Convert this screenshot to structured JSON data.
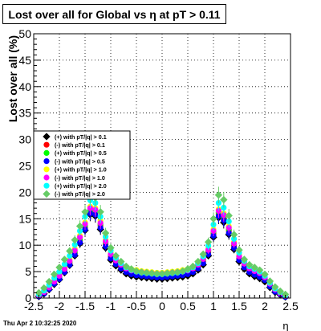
{
  "title": "Lost over all for Global vs   η at pT > 0.11",
  "footer": "Thu Apr  2 10:32:25 2020",
  "chart_data": {
    "type": "scatter",
    "xlabel": "η",
    "ylabel": "Lost over all (%)",
    "xlim": [
      -2.5,
      2.5
    ],
    "ylim": [
      0,
      50
    ],
    "x_ticks": [
      "-2.5",
      "-2",
      "-1.5",
      "-1",
      "-0.5",
      "0",
      "0.5",
      "1",
      "1.5",
      "2",
      "2.5"
    ],
    "y_ticks": [
      "0",
      "5",
      "10",
      "15",
      "20",
      "25",
      "30",
      "35",
      "40",
      "45",
      "50"
    ],
    "grid": true,
    "legend_position": "middle-left",
    "eta": [
      -2.4,
      -2.3,
      -2.2,
      -2.1,
      -2.0,
      -1.9,
      -1.8,
      -1.7,
      -1.6,
      -1.5,
      -1.4,
      -1.3,
      -1.2,
      -1.1,
      -1.0,
      -0.9,
      -0.8,
      -0.7,
      -0.6,
      -0.5,
      -0.4,
      -0.3,
      -0.2,
      -0.1,
      0.0,
      0.1,
      0.2,
      0.3,
      0.4,
      0.5,
      0.6,
      0.7,
      0.8,
      0.9,
      1.0,
      1.1,
      1.2,
      1.3,
      1.4,
      1.5,
      1.6,
      1.7,
      1.8,
      1.9,
      2.0,
      2.1,
      2.2,
      2.3,
      2.4
    ],
    "series": [
      {
        "name": "(+) with pT/|q| > 0.1",
        "color": "#000000",
        "shape": "diamond",
        "values": [
          0.3,
          0.8,
          1.6,
          2.6,
          3.5,
          4.8,
          6.2,
          8.0,
          10.3,
          12.8,
          15.8,
          15.5,
          13.0,
          9.5,
          7.2,
          6.1,
          5.3,
          4.6,
          4.2,
          4.0,
          3.9,
          3.8,
          3.7,
          3.6,
          3.6,
          3.7,
          3.8,
          3.9,
          4.0,
          4.2,
          4.6,
          5.3,
          6.3,
          8.0,
          11.5,
          15.2,
          14.3,
          12.0,
          9.2,
          6.9,
          5.5,
          4.6,
          4.1,
          3.7,
          3.1,
          2.0,
          1.1,
          0.6,
          0.2
        ]
      },
      {
        "name": "(-) with pT/|q| > 0.1",
        "color": "#ff0000",
        "shape": "circle",
        "values": [
          0.4,
          0.9,
          1.7,
          2.8,
          3.8,
          5.1,
          6.6,
          8.5,
          10.9,
          13.4,
          16.4,
          16.2,
          13.7,
          10.2,
          7.9,
          6.8,
          6.0,
          5.3,
          4.9,
          4.7,
          4.6,
          4.5,
          4.4,
          4.3,
          4.3,
          4.4,
          4.5,
          4.6,
          4.7,
          4.9,
          5.3,
          6.0,
          7.0,
          8.7,
          12.2,
          15.9,
          15.1,
          12.7,
          9.9,
          7.5,
          6.1,
          5.2,
          4.7,
          4.3,
          3.6,
          2.4,
          1.4,
          0.8,
          0.3
        ]
      },
      {
        "name": "(+) with pT/|q| > 0.5",
        "color": "#00ff00",
        "shape": "circle",
        "values": [
          0.5,
          1.0,
          1.9,
          3.0,
          4.0,
          5.3,
          6.8,
          8.7,
          11.1,
          13.7,
          16.7,
          16.5,
          14.0,
          10.5,
          8.2,
          7.1,
          6.3,
          5.6,
          5.2,
          5.0,
          4.9,
          4.8,
          4.7,
          4.6,
          4.6,
          4.7,
          4.8,
          4.9,
          5.0,
          5.2,
          5.6,
          6.3,
          7.3,
          9.0,
          12.5,
          16.2,
          15.4,
          13.0,
          10.2,
          7.8,
          6.4,
          5.5,
          5.0,
          4.6,
          3.9,
          2.6,
          1.5,
          0.9,
          0.4
        ]
      },
      {
        "name": "(-) with pT/|q| > 0.5",
        "color": "#0000ff",
        "shape": "circle",
        "values": [
          0.3,
          0.8,
          1.7,
          2.7,
          3.6,
          4.9,
          6.3,
          8.2,
          10.5,
          13.0,
          16.0,
          15.8,
          13.3,
          9.8,
          7.5,
          6.4,
          5.6,
          4.9,
          4.5,
          4.3,
          4.2,
          4.1,
          4.0,
          3.9,
          3.9,
          4.0,
          4.1,
          4.2,
          4.3,
          4.5,
          4.9,
          5.6,
          6.6,
          8.3,
          11.8,
          15.5,
          14.7,
          12.3,
          9.5,
          7.2,
          5.8,
          4.9,
          4.4,
          4.0,
          3.4,
          2.2,
          1.2,
          0.7,
          0.2
        ]
      },
      {
        "name": "(+) with pT/|q| > 1.0",
        "color": "#ffff00",
        "shape": "circle",
        "values": [
          0.6,
          1.2,
          2.1,
          3.3,
          4.4,
          5.8,
          7.3,
          9.3,
          11.8,
          14.3,
          17.3,
          17.0,
          14.6,
          11.0,
          8.6,
          7.4,
          6.6,
          5.9,
          5.5,
          5.3,
          5.1,
          5.0,
          4.9,
          4.8,
          4.8,
          4.9,
          5.0,
          5.1,
          5.3,
          5.5,
          5.9,
          6.6,
          7.7,
          9.4,
          13.0,
          16.8,
          16.0,
          13.6,
          10.6,
          8.2,
          6.7,
          5.8,
          5.3,
          4.9,
          4.1,
          2.8,
          1.7,
          1.0,
          0.4
        ]
      },
      {
        "name": "(-) with pT/|q| > 1.0",
        "color": "#ff00ff",
        "shape": "circle",
        "values": [
          0.5,
          1.1,
          2.0,
          3.1,
          4.2,
          5.5,
          7.0,
          9.0,
          11.5,
          14.0,
          17.0,
          16.7,
          14.2,
          10.7,
          8.3,
          7.1,
          6.3,
          5.6,
          5.2,
          5.0,
          4.9,
          4.8,
          4.7,
          4.6,
          4.6,
          4.7,
          4.8,
          4.9,
          5.0,
          5.2,
          5.6,
          6.3,
          7.4,
          9.1,
          12.7,
          16.5,
          15.7,
          13.3,
          10.3,
          7.9,
          6.5,
          5.6,
          5.1,
          4.7,
          3.9,
          2.7,
          1.6,
          0.9,
          0.4
        ]
      },
      {
        "name": "(+) with pT/|q| > 2.0",
        "color": "#00ffff",
        "shape": "circle",
        "values": [
          0.7,
          1.4,
          2.5,
          3.8,
          5.0,
          6.4,
          8.0,
          10.1,
          12.7,
          15.4,
          18.5,
          18.0,
          15.4,
          11.6,
          9.0,
          7.6,
          6.6,
          5.8,
          5.3,
          5.0,
          4.8,
          4.7,
          4.6,
          4.5,
          4.5,
          4.6,
          4.7,
          4.8,
          5.0,
          5.3,
          5.8,
          6.6,
          7.9,
          9.9,
          13.9,
          18.0,
          17.1,
          14.5,
          11.2,
          8.6,
          7.0,
          6.0,
          5.5,
          5.0,
          4.2,
          2.9,
          1.8,
          1.1,
          0.5
        ]
      },
      {
        "name": "(-) with pT/|q| > 2.0",
        "color": "#66cc66",
        "shape": "diamond",
        "values": [
          1.0,
          1.9,
          3.1,
          4.5,
          5.8,
          7.3,
          8.9,
          11.0,
          13.6,
          16.3,
          19.5,
          19.0,
          16.3,
          12.3,
          9.5,
          8.0,
          6.9,
          6.0,
          5.5,
          5.1,
          4.9,
          4.8,
          4.7,
          4.6,
          4.6,
          4.7,
          4.8,
          4.9,
          5.1,
          5.5,
          6.0,
          6.9,
          8.3,
          10.6,
          15.0,
          19.5,
          18.6,
          15.6,
          12.0,
          9.1,
          7.3,
          6.3,
          5.8,
          5.3,
          4.5,
          3.2,
          2.1,
          1.3,
          0.7
        ]
      }
    ]
  }
}
